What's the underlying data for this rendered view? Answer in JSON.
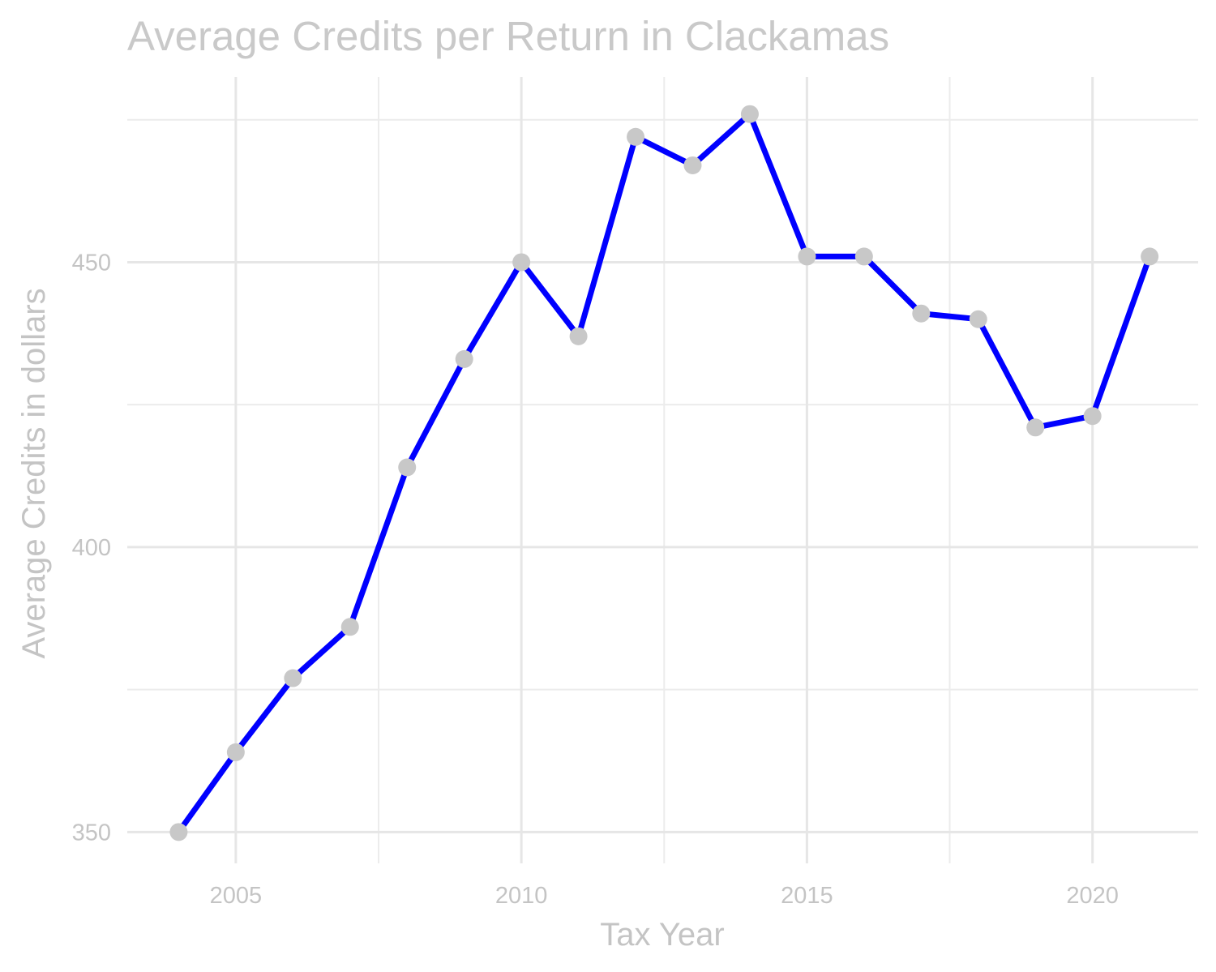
{
  "chart_data": {
    "type": "line",
    "title": "Average Credits per Return in Clackamas",
    "xlabel": "Tax Year",
    "ylabel": "Average Credits in dollars",
    "x": [
      2004,
      2005,
      2006,
      2007,
      2008,
      2009,
      2010,
      2011,
      2012,
      2013,
      2014,
      2015,
      2016,
      2017,
      2018,
      2019,
      2020,
      2021
    ],
    "series": [
      {
        "values": [
          350,
          364,
          377,
          386,
          414,
          433,
          450,
          437,
          472,
          467,
          476,
          451,
          451,
          441,
          440,
          421,
          423,
          451
        ]
      }
    ],
    "xlim": [
      2003.1,
      2021.85
    ],
    "ylim": [
      344.5,
      482.5
    ],
    "x_ticks": [
      2005,
      2010,
      2015,
      2020
    ],
    "x_tick_labels": [
      "2005",
      "2010",
      "2015",
      "2020"
    ],
    "x_minor_ticks": [
      2007.5,
      2012.5,
      2017.5
    ],
    "y_ticks": [
      350,
      400,
      450
    ],
    "y_tick_labels": [
      "350",
      "400",
      "450"
    ],
    "y_minor_ticks": [
      375,
      425,
      475
    ],
    "grid": true,
    "legend": "none",
    "colors": {
      "line": "#0000ff",
      "points": "#c8c8c8",
      "grid": "#e6e6e6",
      "text": "#c4c4c4"
    }
  }
}
